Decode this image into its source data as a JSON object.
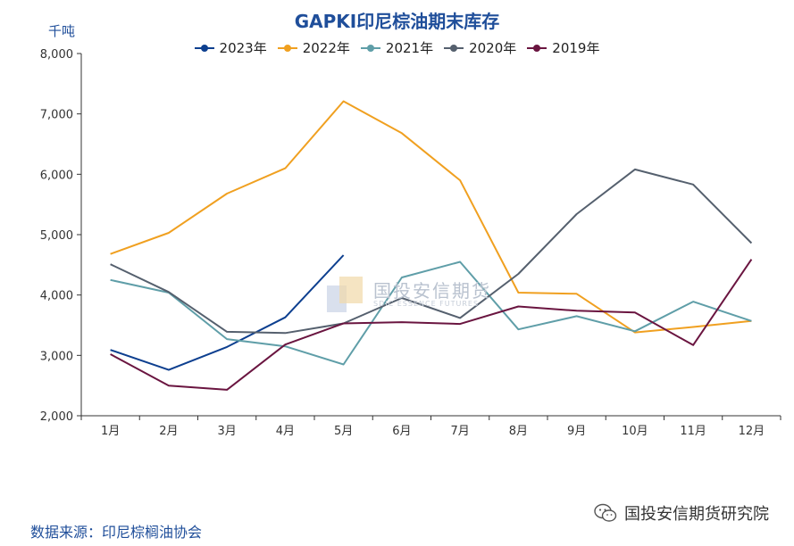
{
  "chart_data": {
    "type": "line",
    "title": "GAPKI印尼棕油期末库存",
    "ylabel": "千吨",
    "xlabel": "",
    "categories": [
      "1月",
      "2月",
      "3月",
      "4月",
      "5月",
      "6月",
      "7月",
      "8月",
      "9月",
      "10月",
      "11月",
      "12月"
    ],
    "ylim": [
      2000,
      8000
    ],
    "yticks": [
      "2,000",
      "3,000",
      "4,000",
      "5,000",
      "6,000",
      "7,000",
      "8,000"
    ],
    "ytick_values": [
      2000,
      3000,
      4000,
      5000,
      6000,
      7000,
      8000
    ],
    "legend_position": "top-center",
    "series": [
      {
        "name": "2023年",
        "color": "#0d3f8f",
        "values": [
          3090,
          2760,
          3140,
          3630,
          4660,
          null,
          null,
          null,
          null,
          null,
          null,
          null
        ]
      },
      {
        "name": "2022年",
        "color": "#f0a020",
        "values": [
          4680,
          5030,
          5680,
          6100,
          7210,
          6680,
          5900,
          4040,
          4020,
          3380,
          3470,
          3570
        ]
      },
      {
        "name": "2021年",
        "color": "#5f9ea8",
        "values": [
          4250,
          4040,
          3270,
          3150,
          2850,
          4290,
          4550,
          3430,
          3650,
          3400,
          3890,
          3570
        ]
      },
      {
        "name": "2020年",
        "color": "#55606e",
        "values": [
          4510,
          4050,
          3390,
          3370,
          3530,
          3950,
          3620,
          4350,
          5340,
          6080,
          5830,
          4860
        ]
      },
      {
        "name": "2019年",
        "color": "#6a1540",
        "values": [
          3020,
          2500,
          2430,
          3180,
          3530,
          3550,
          3520,
          3810,
          3740,
          3710,
          3170,
          4590
        ]
      }
    ]
  },
  "watermark": {
    "cn": "国投安信期货",
    "en": "SDIC ESSENCE FUTURES"
  },
  "source": "数据来源：印尼棕榈油协会",
  "brand": "国投安信期货研究院"
}
